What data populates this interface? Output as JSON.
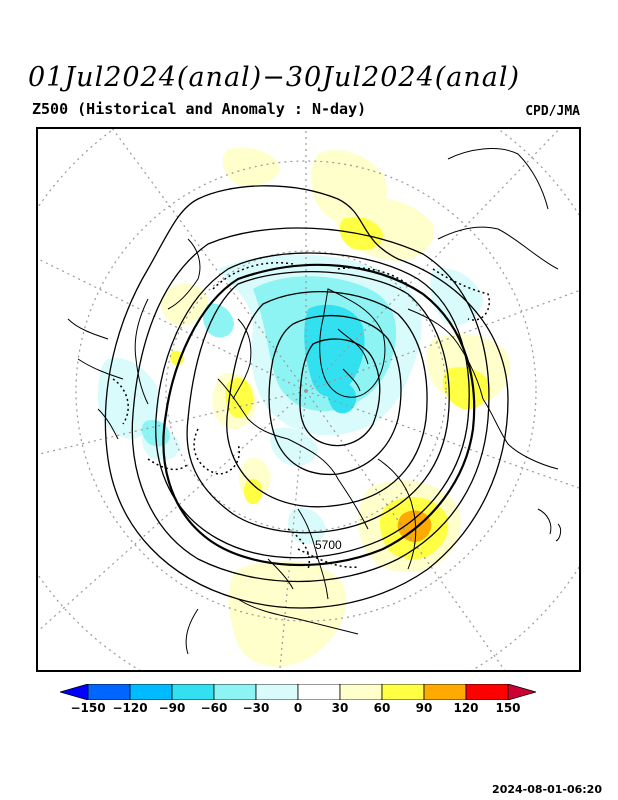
{
  "header": {
    "title": "01Jul2024(anal)−30Jul2024(anal)",
    "subtitle": "Z500 (Historical and Anomaly : N-day)",
    "agency": "CPD/JMA"
  },
  "map": {
    "projection": "north-polar-stereographic",
    "contour_label": "5700",
    "anomaly_colors": {
      "neg90": "#33e0f0",
      "neg60": "#8ef3f3",
      "neg30": "#d9fbfb",
      "pos30": "#ffffcc",
      "pos60": "#ffff44",
      "pos90": "#ffaa00"
    }
  },
  "colorbar": {
    "labels": [
      "−150",
      "−120",
      "−90",
      "−60",
      "−30",
      "0",
      "30",
      "60",
      "90",
      "120",
      "150"
    ],
    "colors": [
      "#0000ff",
      "#0066ff",
      "#00bbff",
      "#33e0f0",
      "#8ef3f3",
      "#d9fbfb",
      "#ffffff",
      "#ffffcc",
      "#ffff44",
      "#ffaa00",
      "#ff0000",
      "#cc0033"
    ]
  },
  "footer": {
    "timestamp": "2024-08-01-06:20"
  }
}
